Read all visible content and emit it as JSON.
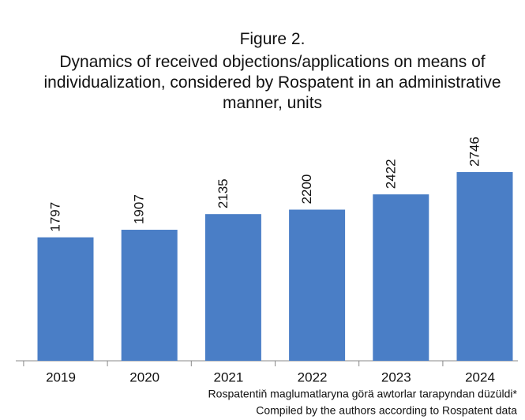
{
  "chart_data": {
    "type": "bar",
    "title": "Figure 2.",
    "subtitle": "Dynamics of received objections/applications on means of individualization, considered by Rospatent in an administrative manner, units",
    "categories": [
      "2019",
      "2020",
      "2021",
      "2022",
      "2023",
      "2024"
    ],
    "values": [
      1797,
      1907,
      2135,
      2200,
      2422,
      2746
    ],
    "color": "#4a7ec6",
    "annotations": [
      "Rospatentiň maglumatlaryna görä awtorlar tarapyndan düzüldi*",
      "Compiled by the authors according to Rospatent data"
    ]
  }
}
